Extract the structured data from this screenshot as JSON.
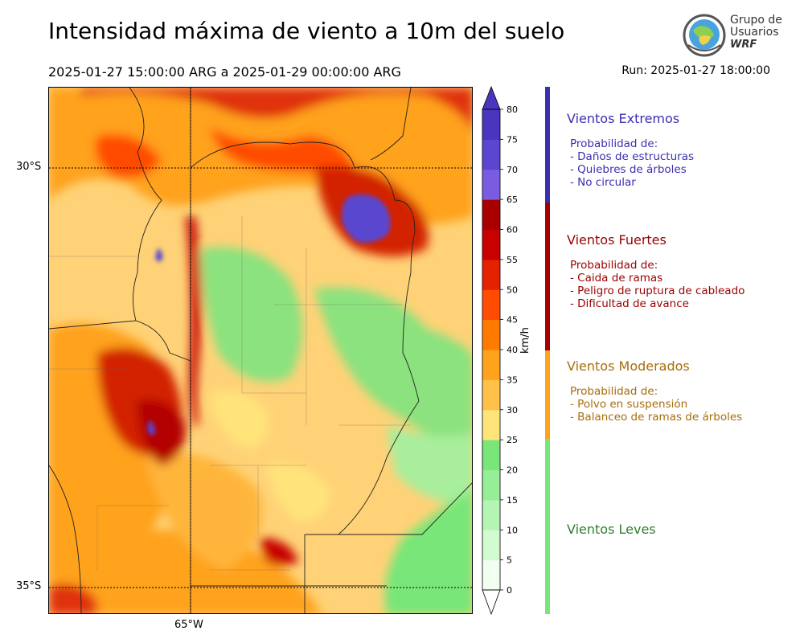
{
  "header": {
    "title": "Intensidad máxima de viento a 10m del suelo",
    "period": "2025-01-27 15:00:00 ARG  a  2025-01-29 00:00:00 ARG",
    "run": "Run: 2025-01-27 18:00:00"
  },
  "logo": {
    "line1": "Grupo de",
    "line2": "Usuarios",
    "line3": "WRF"
  },
  "axes": {
    "lat_labels": [
      "30°S",
      "35°S"
    ],
    "lon_labels": [
      "65°W"
    ]
  },
  "colorbar": {
    "unit": "km/h",
    "ticks": [
      "0",
      "5",
      "10",
      "15",
      "20",
      "25",
      "30",
      "35",
      "40",
      "45",
      "50",
      "55",
      "60",
      "65",
      "70",
      "75",
      "80"
    ],
    "colors": [
      "#f0fff0",
      "#d2fbd2",
      "#b4f5b4",
      "#96ee96",
      "#78e678",
      "#ffe47a",
      "#ffc147",
      "#ffa21c",
      "#ff7a00",
      "#ff4c00",
      "#e52100",
      "#c80000",
      "#a80000",
      "#7a5ce0",
      "#5a46d0",
      "#4a36be"
    ]
  },
  "categories": [
    {
      "title": "Vientos Extremos",
      "color": "#3a2fb0",
      "desc_header": "Probabilidad de:",
      "items": [
        "- Daños de estructuras",
        "- Quiebres de árboles",
        "- No circular"
      ]
    },
    {
      "title": "Vientos Fuertes",
      "color": "#9b0000",
      "desc_header": "Probabilidad de:",
      "items": [
        "- Caida de ramas",
        "- Peligro de ruptura de cableado",
        "- Dificultad de avance"
      ]
    },
    {
      "title": "Vientos Moderados",
      "color": "#a86d0a",
      "desc_header": "Probabilidad de:",
      "items": [
        "- Polvo en suspensión",
        "- Balanceo de ramas de árboles"
      ]
    },
    {
      "title": "Vientos Leves",
      "color": "#2e7d2e",
      "desc_header": "",
      "items": []
    }
  ]
}
